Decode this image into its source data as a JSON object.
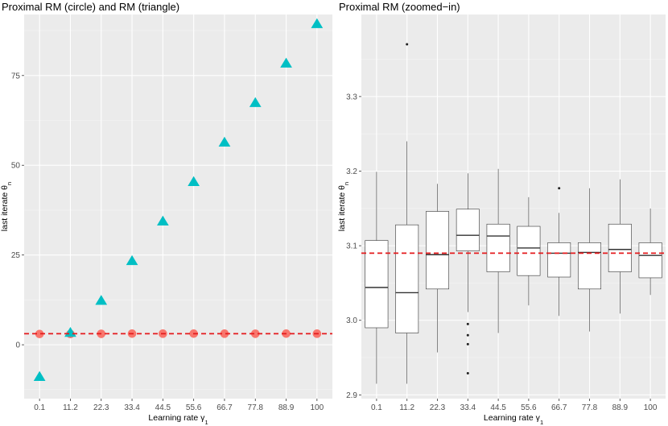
{
  "chart_data": [
    {
      "type": "scatter",
      "title": "Proximal RM (circle) and RM (triangle)",
      "xlabel": "Learning rate γ",
      "xlabel_subscript": "1",
      "ylabel": "last iterate θ",
      "ylabel_subscript": "n",
      "categories": [
        "0.1",
        "11.2",
        "22.3",
        "33.4",
        "44.5",
        "55.6",
        "66.7",
        "77.8",
        "88.9",
        "100"
      ],
      "ylim": [
        -15,
        92
      ],
      "yticks": [
        0,
        25,
        50,
        75
      ],
      "yticklabels": [
        "0",
        "25",
        "50",
        "75"
      ],
      "reference_line": {
        "y": 3.09,
        "color": "#e41a1c",
        "style": "dashed"
      },
      "series": [
        {
          "name": "Proximal RM",
          "marker": "circle",
          "color": "#f8766d",
          "values": [
            3.0,
            3.0,
            3.05,
            3.1,
            3.09,
            3.1,
            3.09,
            3.08,
            3.1,
            3.09
          ]
        },
        {
          "name": "RM",
          "marker": "triangle",
          "color": "#00bfc4",
          "values": [
            -8.9,
            3.4,
            12.3,
            23.4,
            34.4,
            45.4,
            56.4,
            67.4,
            78.4,
            89.4
          ]
        }
      ]
    },
    {
      "type": "box",
      "title": "Proximal RM (zoomed−in)",
      "xlabel": "Learning rate γ",
      "xlabel_subscript": "1",
      "ylabel": "last iterate θ",
      "ylabel_subscript": "n",
      "categories": [
        "0.1",
        "11.2",
        "22.3",
        "33.4",
        "44.5",
        "55.6",
        "66.7",
        "77.8",
        "88.9",
        "100"
      ],
      "ylim": [
        2.895,
        3.41
      ],
      "yticks": [
        2.9,
        3.0,
        3.1,
        3.2,
        3.3
      ],
      "yticklabels": [
        "2.9",
        "3.0",
        "3.1",
        "3.2",
        "3.3"
      ],
      "reference_line": {
        "y": 3.09,
        "color": "#e41a1c",
        "style": "dashed"
      },
      "boxes": [
        {
          "whisker_low": 2.915,
          "q1": 2.99,
          "median": 3.044,
          "q3": 3.107,
          "whisker_high": 3.199,
          "outliers": []
        },
        {
          "whisker_low": 2.915,
          "q1": 2.983,
          "median": 3.037,
          "q3": 3.128,
          "whisker_high": 3.24,
          "outliers": [
            3.37
          ]
        },
        {
          "whisker_low": 2.957,
          "q1": 3.042,
          "median": 3.088,
          "q3": 3.146,
          "whisker_high": 3.183,
          "outliers": []
        },
        {
          "whisker_low": 3.011,
          "q1": 3.093,
          "median": 3.114,
          "q3": 3.149,
          "whisker_high": 3.197,
          "outliers": [
            2.929,
            2.968,
            2.98,
            2.995
          ]
        },
        {
          "whisker_low": 2.983,
          "q1": 3.065,
          "median": 3.113,
          "q3": 3.129,
          "whisker_high": 3.203,
          "outliers": []
        },
        {
          "whisker_low": 3.02,
          "q1": 3.06,
          "median": 3.097,
          "q3": 3.126,
          "whisker_high": 3.165,
          "outliers": []
        },
        {
          "whisker_low": 3.006,
          "q1": 3.058,
          "median": 3.09,
          "q3": 3.104,
          "whisker_high": 3.144,
          "outliers": [
            3.177
          ]
        },
        {
          "whisker_low": 2.985,
          "q1": 3.042,
          "median": 3.091,
          "q3": 3.104,
          "whisker_high": 3.177,
          "outliers": []
        },
        {
          "whisker_low": 3.009,
          "q1": 3.065,
          "median": 3.095,
          "q3": 3.129,
          "whisker_high": 3.189,
          "outliers": []
        },
        {
          "whisker_low": 3.034,
          "q1": 3.057,
          "median": 3.087,
          "q3": 3.104,
          "whisker_high": 3.15,
          "outliers": []
        }
      ]
    }
  ]
}
